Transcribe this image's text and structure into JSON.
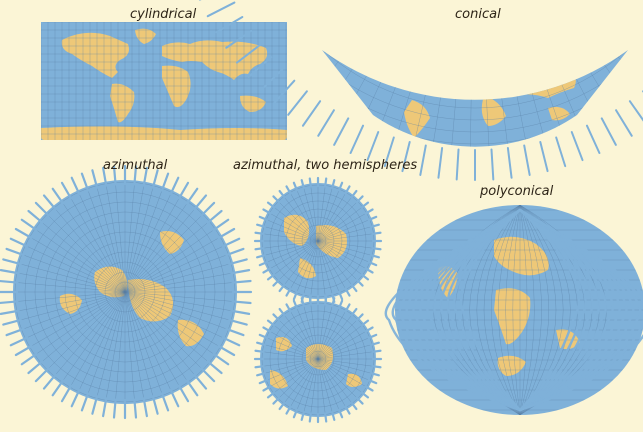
{
  "panels": [
    {
      "id": "cylindrical",
      "label": "cylindrical"
    },
    {
      "id": "conical",
      "label": "conical"
    },
    {
      "id": "azimuthal",
      "label": "azimuthal"
    },
    {
      "id": "azimuthal-two-hemispheres",
      "label": "azimuthal, two hemispheres"
    },
    {
      "id": "polyconical",
      "label": "polyconical"
    }
  ],
  "colors": {
    "background": "#fbf5d6",
    "ocean": "#7fb1d9",
    "land": "#eec878",
    "grid": "#5a7fa6",
    "label": "#2d2417"
  }
}
